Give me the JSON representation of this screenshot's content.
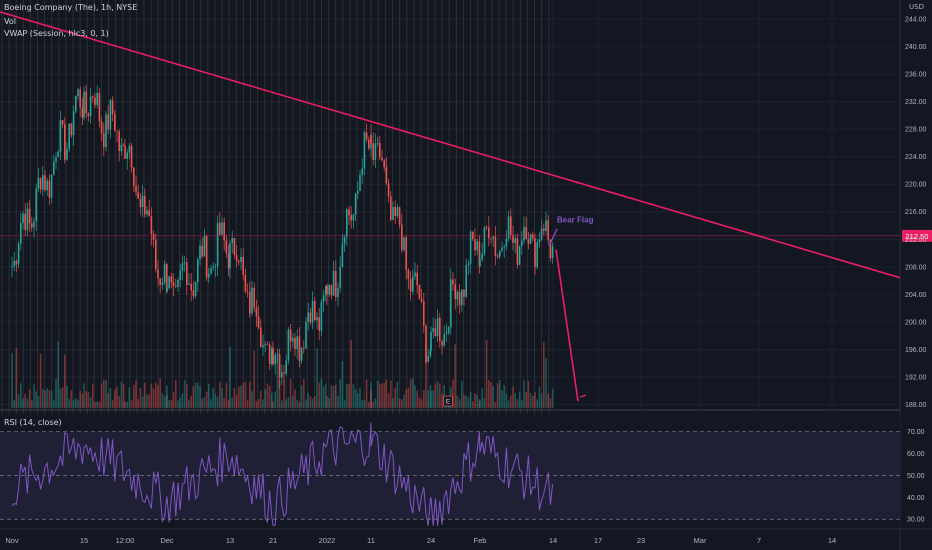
{
  "header": {
    "symbol_line": "Boeing Company (The), 1h, NYSE",
    "vol_label": "Vol",
    "vwap_label": "VWAP (Session, hlc3, 0, 1)",
    "rsi_label": "RSI (14, close)",
    "currency": "USD"
  },
  "price_axis": {
    "ticks": [
      "244.00",
      "240.00",
      "236.00",
      "232.00",
      "228.00",
      "224.00",
      "220.00",
      "216.00",
      "212.00",
      "208.00",
      "204.00",
      "200.00",
      "196.00",
      "192.00",
      "188.00"
    ],
    "current_price_label": "212.50"
  },
  "rsi_axis": {
    "ticks": [
      "70.00",
      "60.00",
      "50.00",
      "40.00",
      "30.00"
    ]
  },
  "time_axis": {
    "ticks": [
      "Nov",
      "15",
      "12:00",
      "Dec",
      "13",
      "21",
      "2022",
      "11",
      "24",
      "Feb",
      "14",
      "17",
      "23",
      "Mar",
      "7",
      "14"
    ]
  },
  "annotations": {
    "pattern_label": "Bear Flag",
    "earnings_marker": "E"
  },
  "colors": {
    "background": "#131722",
    "up": "#26a69a",
    "down": "#ef5350",
    "trendline": "#e91e63",
    "rsi_line": "#7e57c2",
    "annotation": "#7e57c2",
    "price_tag_bg": "#e91e63"
  },
  "chart_data": {
    "type": "line",
    "series": [
      {
        "name": "Boeing Company (The), 1h, NYSE",
        "x": [
          "Nov",
          "15",
          "12:00",
          "Dec",
          "13",
          "21",
          "2022",
          "11",
          "24",
          "Feb",
          "14"
        ],
        "values": [
          210,
          233,
          226,
          204,
          212,
          194,
          203,
          227,
          196,
          212,
          212.5
        ]
      }
    ],
    "rsi": {
      "name": "RSI (14, close)",
      "x": [
        "Nov",
        "15",
        "12:00",
        "Dec",
        "13",
        "21",
        "2022",
        "11",
        "24",
        "Feb",
        "14"
      ],
      "values": [
        44,
        64,
        52,
        38,
        60,
        36,
        62,
        66,
        30,
        64,
        40
      ]
    },
    "trendline": {
      "from": {
        "x": "Nov",
        "y": 244.5
      },
      "to": {
        "x": "14",
        "y": 221.3
      }
    },
    "projection": {
      "from": {
        "x": "14",
        "y": 210.5
      },
      "to": {
        "x": "17",
        "y": 188.5
      }
    },
    "ylim": [
      187.5,
      245
    ],
    "rsi_ylim": [
      26,
      78
    ],
    "grid": true,
    "legend": "top-left"
  }
}
